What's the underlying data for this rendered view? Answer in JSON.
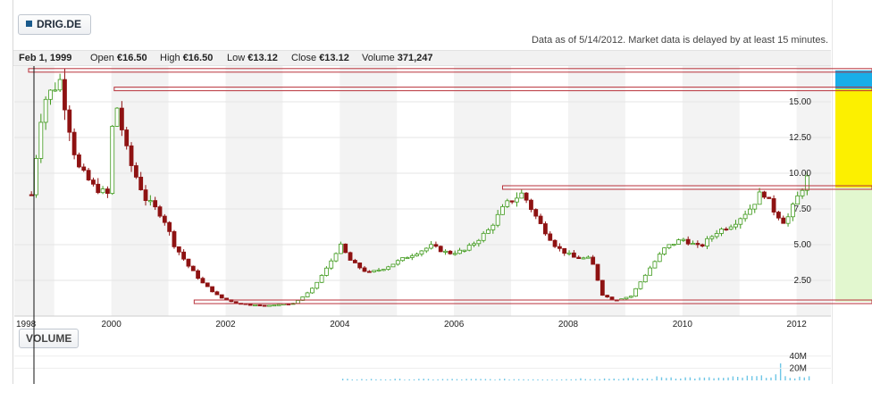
{
  "header": {
    "ticker": "DRIG.DE",
    "as_of": "Data as of 5/14/2012. Market data is delayed by at least 15 minutes."
  },
  "infobar": {
    "date": "Feb 1, 1999",
    "open_label": "Open",
    "open_value": "€16.50",
    "high_label": "High",
    "high_value": "€16.50",
    "low_label": "Low",
    "low_value": "€13.12",
    "close_label": "Close",
    "close_value": "€13.12",
    "volume_label": "Volume",
    "volume_value": "371,247"
  },
  "volume_panel": {
    "label": "VOLUME"
  },
  "colors": {
    "up": "#3f9a1c",
    "down": "#8e1212",
    "band": "#f3f3f3",
    "level_line": "#b8323b",
    "zone_blue": "#19aee8",
    "zone_yellow": "#fcf000",
    "zone_green": "#e2f7cf",
    "volume": "#6ec6e6"
  },
  "chart_data": [
    {
      "type": "candlestick",
      "title": "",
      "x_ticks": [
        "1998",
        "2000",
        "2002",
        "2004",
        "2006",
        "2008",
        "2010",
        "2012"
      ],
      "y_ticks": [
        "15.00",
        "12.50",
        "10.00",
        "7.50",
        "5.00",
        "2.50"
      ],
      "ylim": [
        0,
        17.5
      ],
      "xlim": [
        1998.3,
        2012.6
      ],
      "grid": true,
      "series": [
        {
          "points": [
            [
              1998.6,
              8.5
            ],
            [
              1998.8,
              15.0
            ],
            [
              1999.1,
              16.5
            ],
            [
              1999.4,
              10.5
            ],
            [
              1999.7,
              9.0
            ],
            [
              1999.95,
              8.5
            ],
            [
              2000.05,
              15.5
            ],
            [
              2000.3,
              11.0
            ],
            [
              2000.6,
              8.2
            ],
            [
              2000.9,
              7.0
            ],
            [
              2001.1,
              5.0
            ],
            [
              2001.35,
              3.5
            ],
            [
              2001.6,
              2.3
            ],
            [
              2001.9,
              1.3
            ],
            [
              2002.2,
              0.9
            ],
            [
              2002.6,
              0.75
            ],
            [
              2002.9,
              0.8
            ],
            [
              2003.2,
              0.9
            ],
            [
              2003.5,
              1.8
            ],
            [
              2003.8,
              3.5
            ],
            [
              2004.0,
              5.0
            ],
            [
              2004.2,
              3.8
            ],
            [
              2004.5,
              3.0
            ],
            [
              2004.8,
              3.4
            ],
            [
              2005.2,
              4.2
            ],
            [
              2005.6,
              4.9
            ],
            [
              2005.9,
              4.4
            ],
            [
              2006.2,
              4.6
            ],
            [
              2006.6,
              6.0
            ],
            [
              2006.9,
              7.8
            ],
            [
              2007.2,
              8.6
            ],
            [
              2007.5,
              6.5
            ],
            [
              2007.8,
              4.8
            ],
            [
              2008.1,
              4.1
            ],
            [
              2008.4,
              4.0
            ],
            [
              2008.6,
              1.5
            ],
            [
              2008.8,
              1.1
            ],
            [
              2009.1,
              1.4
            ],
            [
              2009.4,
              3.2
            ],
            [
              2009.7,
              4.8
            ],
            [
              2010.0,
              5.4
            ],
            [
              2010.3,
              4.8
            ],
            [
              2010.6,
              5.9
            ],
            [
              2010.9,
              6.5
            ],
            [
              2011.2,
              7.6
            ],
            [
              2011.4,
              8.8
            ],
            [
              2011.6,
              7.4
            ],
            [
              2011.8,
              6.5
            ],
            [
              2012.0,
              8.2
            ],
            [
              2012.2,
              9.8
            ]
          ]
        }
      ],
      "levels": [
        {
          "value": 17.2
        },
        {
          "value": 15.9
        },
        {
          "value": 9.0
        },
        {
          "value": 1.0
        }
      ]
    },
    {
      "type": "bar",
      "title": "",
      "y_ticks": [
        "40M",
        "20M"
      ],
      "ylim": [
        0,
        50000000
      ],
      "series": [
        {
          "points": [
            [
              2004.0,
              2000000
            ],
            [
              2005.6,
              2000000
            ],
            [
              2006.5,
              2000000
            ],
            [
              2007.2,
              2500000
            ],
            [
              2007.6,
              2000000
            ],
            [
              2008.1,
              3000000
            ],
            [
              2008.6,
              4000000
            ],
            [
              2009.1,
              3000000
            ],
            [
              2009.5,
              5000000
            ],
            [
              2009.8,
              6000000
            ],
            [
              2010.2,
              4500000
            ],
            [
              2010.5,
              4000000
            ],
            [
              2010.8,
              5000000
            ],
            [
              2011.1,
              6000000
            ],
            [
              2011.4,
              7000000
            ],
            [
              2011.6,
              9000000
            ],
            [
              2011.75,
              28000000
            ],
            [
              2011.9,
              5000000
            ],
            [
              2012.1,
              8000000
            ],
            [
              2012.25,
              6000000
            ]
          ]
        }
      ]
    }
  ]
}
